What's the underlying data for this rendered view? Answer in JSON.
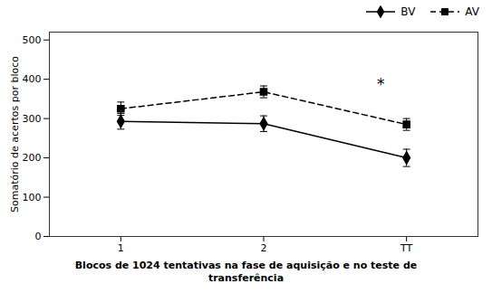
{
  "chart_data": {
    "type": "line",
    "x": [
      1,
      2,
      3
    ],
    "xlim": [
      0.5,
      3.5
    ],
    "xticks": [
      1,
      2,
      {
        "value": 3,
        "label": "TT"
      }
    ],
    "xlabel": "Blocos de 1024 tentativas na fase de aquisição e no teste de\ntransferência",
    "ylabel": "Somatório de acertos por bloco",
    "ylim": [
      0,
      520
    ],
    "yticks": [
      0,
      100,
      200,
      300,
      400,
      500
    ],
    "grid": false,
    "legend": "top-right",
    "series": [
      {
        "name": "BV",
        "color": "#000000",
        "marker": "diamond",
        "line_style": "solid",
        "values": [
          293,
          287,
          200
        ],
        "errors": [
          20,
          20,
          22
        ]
      },
      {
        "name": "AV",
        "color": "#000000",
        "marker": "square",
        "line_style": "dashed",
        "values": [
          325,
          368,
          285
        ],
        "errors": [
          17,
          15,
          15
        ]
      }
    ],
    "annotations": [
      {
        "text": "*",
        "x": 2.82,
        "y": 375
      }
    ]
  }
}
